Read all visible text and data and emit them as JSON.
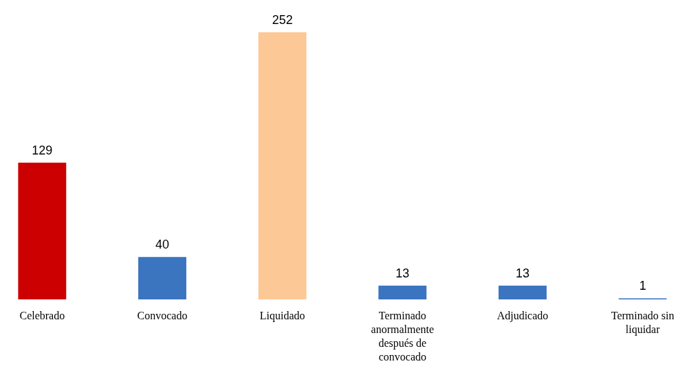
{
  "chart_data": {
    "type": "bar",
    "categories": [
      "Celebrado",
      "Convocado",
      "Liquidado",
      "Terminado anormalmente después de convocado",
      "Adjudicado",
      "Terminado sin liquidar"
    ],
    "values": [
      129,
      40,
      252,
      13,
      13,
      1
    ],
    "colors": [
      "#cc0000",
      "#3b74bf",
      "#fcc896",
      "#3b74bf",
      "#3b74bf",
      "#3b74bf"
    ],
    "data_labels": true
  }
}
